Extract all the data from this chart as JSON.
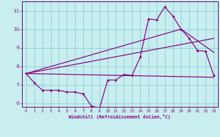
{
  "xlabel": "Windchill (Refroidissement éolien,°C)",
  "bg_color": "#c8eef0",
  "grid_color": "#88cccc",
  "line_color": "#880088",
  "spine_color": "#660066",
  "xlim": [
    -0.5,
    23.5
  ],
  "ylim": [
    5.8,
    11.5
  ],
  "yticks": [
    6,
    7,
    8,
    9,
    10,
    11
  ],
  "xticks": [
    0,
    1,
    2,
    3,
    4,
    5,
    6,
    7,
    8,
    9,
    10,
    11,
    12,
    13,
    14,
    15,
    16,
    17,
    18,
    19,
    20,
    21,
    22,
    23
  ],
  "series1_x": [
    0,
    1,
    2,
    3,
    4,
    5,
    6,
    7,
    8,
    9,
    10,
    11,
    12,
    13,
    14,
    15,
    16,
    17,
    18,
    19,
    20,
    21,
    22,
    23
  ],
  "series1_y": [
    7.6,
    7.1,
    6.7,
    6.7,
    6.7,
    6.6,
    6.6,
    6.5,
    5.85,
    5.72,
    7.25,
    7.25,
    7.55,
    7.5,
    8.5,
    10.55,
    10.5,
    11.2,
    10.7,
    10.0,
    9.5,
    8.85,
    8.8,
    7.5
  ],
  "series2_x": [
    0,
    23
  ],
  "series2_y": [
    7.6,
    7.4
  ],
  "series3_x": [
    0,
    19,
    23
  ],
  "series3_y": [
    7.6,
    10.0,
    8.75
  ],
  "series4_x": [
    0,
    23
  ],
  "series4_y": [
    7.6,
    9.5
  ]
}
